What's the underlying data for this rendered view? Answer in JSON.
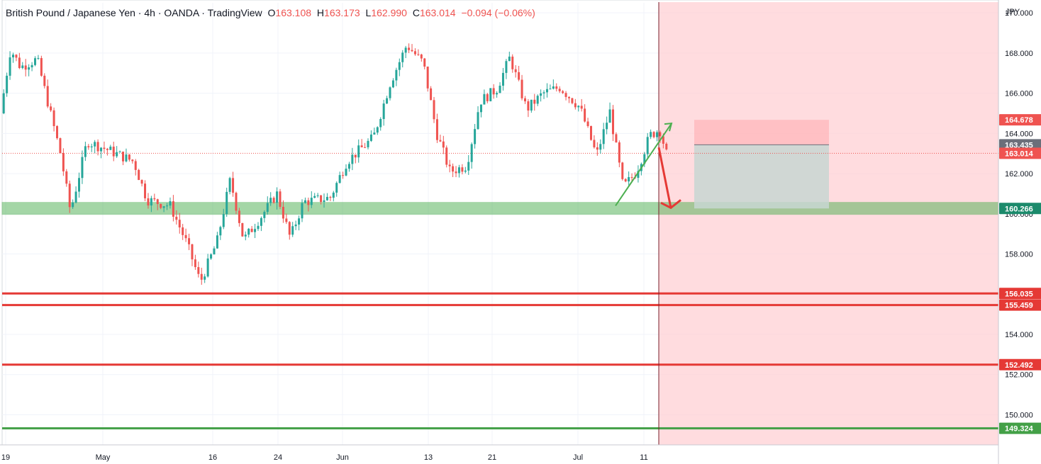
{
  "header": {
    "title": "British Pound / Japanese Yen · 4h · OANDA · TradingView",
    "o_label": "O",
    "o_value": "163.108",
    "h_label": "H",
    "h_value": "163.173",
    "l_label": "L",
    "l_value": "162.990",
    "c_label": "C",
    "c_value": "163.014",
    "change": "−0.094 (−0.06%)"
  },
  "colors": {
    "up": "#26a69a",
    "down": "#ef5350",
    "support_zone": "#4caf50",
    "resistance_line": "#e53935",
    "bottom_line": "#43a047",
    "forecast_zone": "#ffcdd2",
    "current_price_badge": "#ef5350",
    "target_badge": "#1b8a6b",
    "entry_badge": "#6b6f7a"
  },
  "chart_data": {
    "type": "candlestick",
    "symbol": "GBPJPY",
    "timeframe": "4h",
    "currency": "JPY",
    "y_axis_label": "JPY",
    "ylim": [
      148.5,
      170.5
    ],
    "y_ticks": [
      "150.000",
      "152.000",
      "154.000",
      "156.000",
      "158.000",
      "160.000",
      "162.000",
      "164.000",
      "166.000",
      "168.000",
      "170.000"
    ],
    "x_ticks": [
      "19",
      "May",
      "16",
      "24",
      "Jun",
      "13",
      "21",
      "Jul",
      "11"
    ],
    "grid": true,
    "price_path": [
      {
        "t": 0.0,
        "p": 165.0
      },
      {
        "t": 0.015,
        "p": 168.2
      },
      {
        "t": 0.03,
        "p": 167.3
      },
      {
        "t": 0.055,
        "p": 167.7
      },
      {
        "t": 0.075,
        "p": 165.0
      },
      {
        "t": 0.09,
        "p": 163.0
      },
      {
        "t": 0.105,
        "p": 160.1
      },
      {
        "t": 0.13,
        "p": 163.6
      },
      {
        "t": 0.16,
        "p": 163.2
      },
      {
        "t": 0.2,
        "p": 162.6
      },
      {
        "t": 0.22,
        "p": 160.7
      },
      {
        "t": 0.255,
        "p": 160.4
      },
      {
        "t": 0.28,
        "p": 158.5
      },
      {
        "t": 0.3,
        "p": 156.6
      },
      {
        "t": 0.325,
        "p": 158.6
      },
      {
        "t": 0.345,
        "p": 161.7
      },
      {
        "t": 0.365,
        "p": 158.7
      },
      {
        "t": 0.39,
        "p": 159.8
      },
      {
        "t": 0.415,
        "p": 161.0
      },
      {
        "t": 0.435,
        "p": 158.8
      },
      {
        "t": 0.455,
        "p": 160.6
      },
      {
        "t": 0.495,
        "p": 160.8
      },
      {
        "t": 0.52,
        "p": 162.6
      },
      {
        "t": 0.56,
        "p": 163.8
      },
      {
        "t": 0.585,
        "p": 166.5
      },
      {
        "t": 0.61,
        "p": 168.4
      },
      {
        "t": 0.635,
        "p": 167.5
      },
      {
        "t": 0.655,
        "p": 164.0
      },
      {
        "t": 0.675,
        "p": 162.1
      },
      {
        "t": 0.7,
        "p": 162.4
      },
      {
        "t": 0.72,
        "p": 165.6
      },
      {
        "t": 0.745,
        "p": 166.2
      },
      {
        "t": 0.765,
        "p": 167.8
      },
      {
        "t": 0.79,
        "p": 165.2
      },
      {
        "t": 0.815,
        "p": 166.0
      },
      {
        "t": 0.84,
        "p": 166.3
      },
      {
        "t": 0.87,
        "p": 165.3
      },
      {
        "t": 0.895,
        "p": 162.9
      },
      {
        "t": 0.915,
        "p": 165.1
      },
      {
        "t": 0.935,
        "p": 161.3
      },
      {
        "t": 0.955,
        "p": 162.1
      },
      {
        "t": 0.975,
        "p": 163.9
      },
      {
        "t": 0.99,
        "p": 164.2
      },
      {
        "t": 1.0,
        "p": 163.0
      }
    ],
    "annotations": {
      "support_zone": [
        159.97,
        160.57
      ],
      "resistance_lines": [
        156.035,
        155.459,
        152.492
      ],
      "bottom_line": 149.324,
      "position_box": {
        "stop": 164.678,
        "entry": 163.435,
        "target": 160.266
      },
      "arrow_up": {
        "from": 160.4,
        "to": 164.5
      },
      "arrow_down": {
        "from": 163.3,
        "to": 160.3
      }
    },
    "price_labels": [
      {
        "value": "164.678",
        "kind": "stop"
      },
      {
        "value": "163.435",
        "kind": "entry"
      },
      {
        "value": "163.014",
        "kind": "current"
      },
      {
        "value": "160.266",
        "kind": "target"
      },
      {
        "value": "156.035",
        "kind": "resistance"
      },
      {
        "value": "155.459",
        "kind": "resistance"
      },
      {
        "value": "152.492",
        "kind": "resistance"
      },
      {
        "value": "149.324",
        "kind": "bottom"
      }
    ]
  }
}
